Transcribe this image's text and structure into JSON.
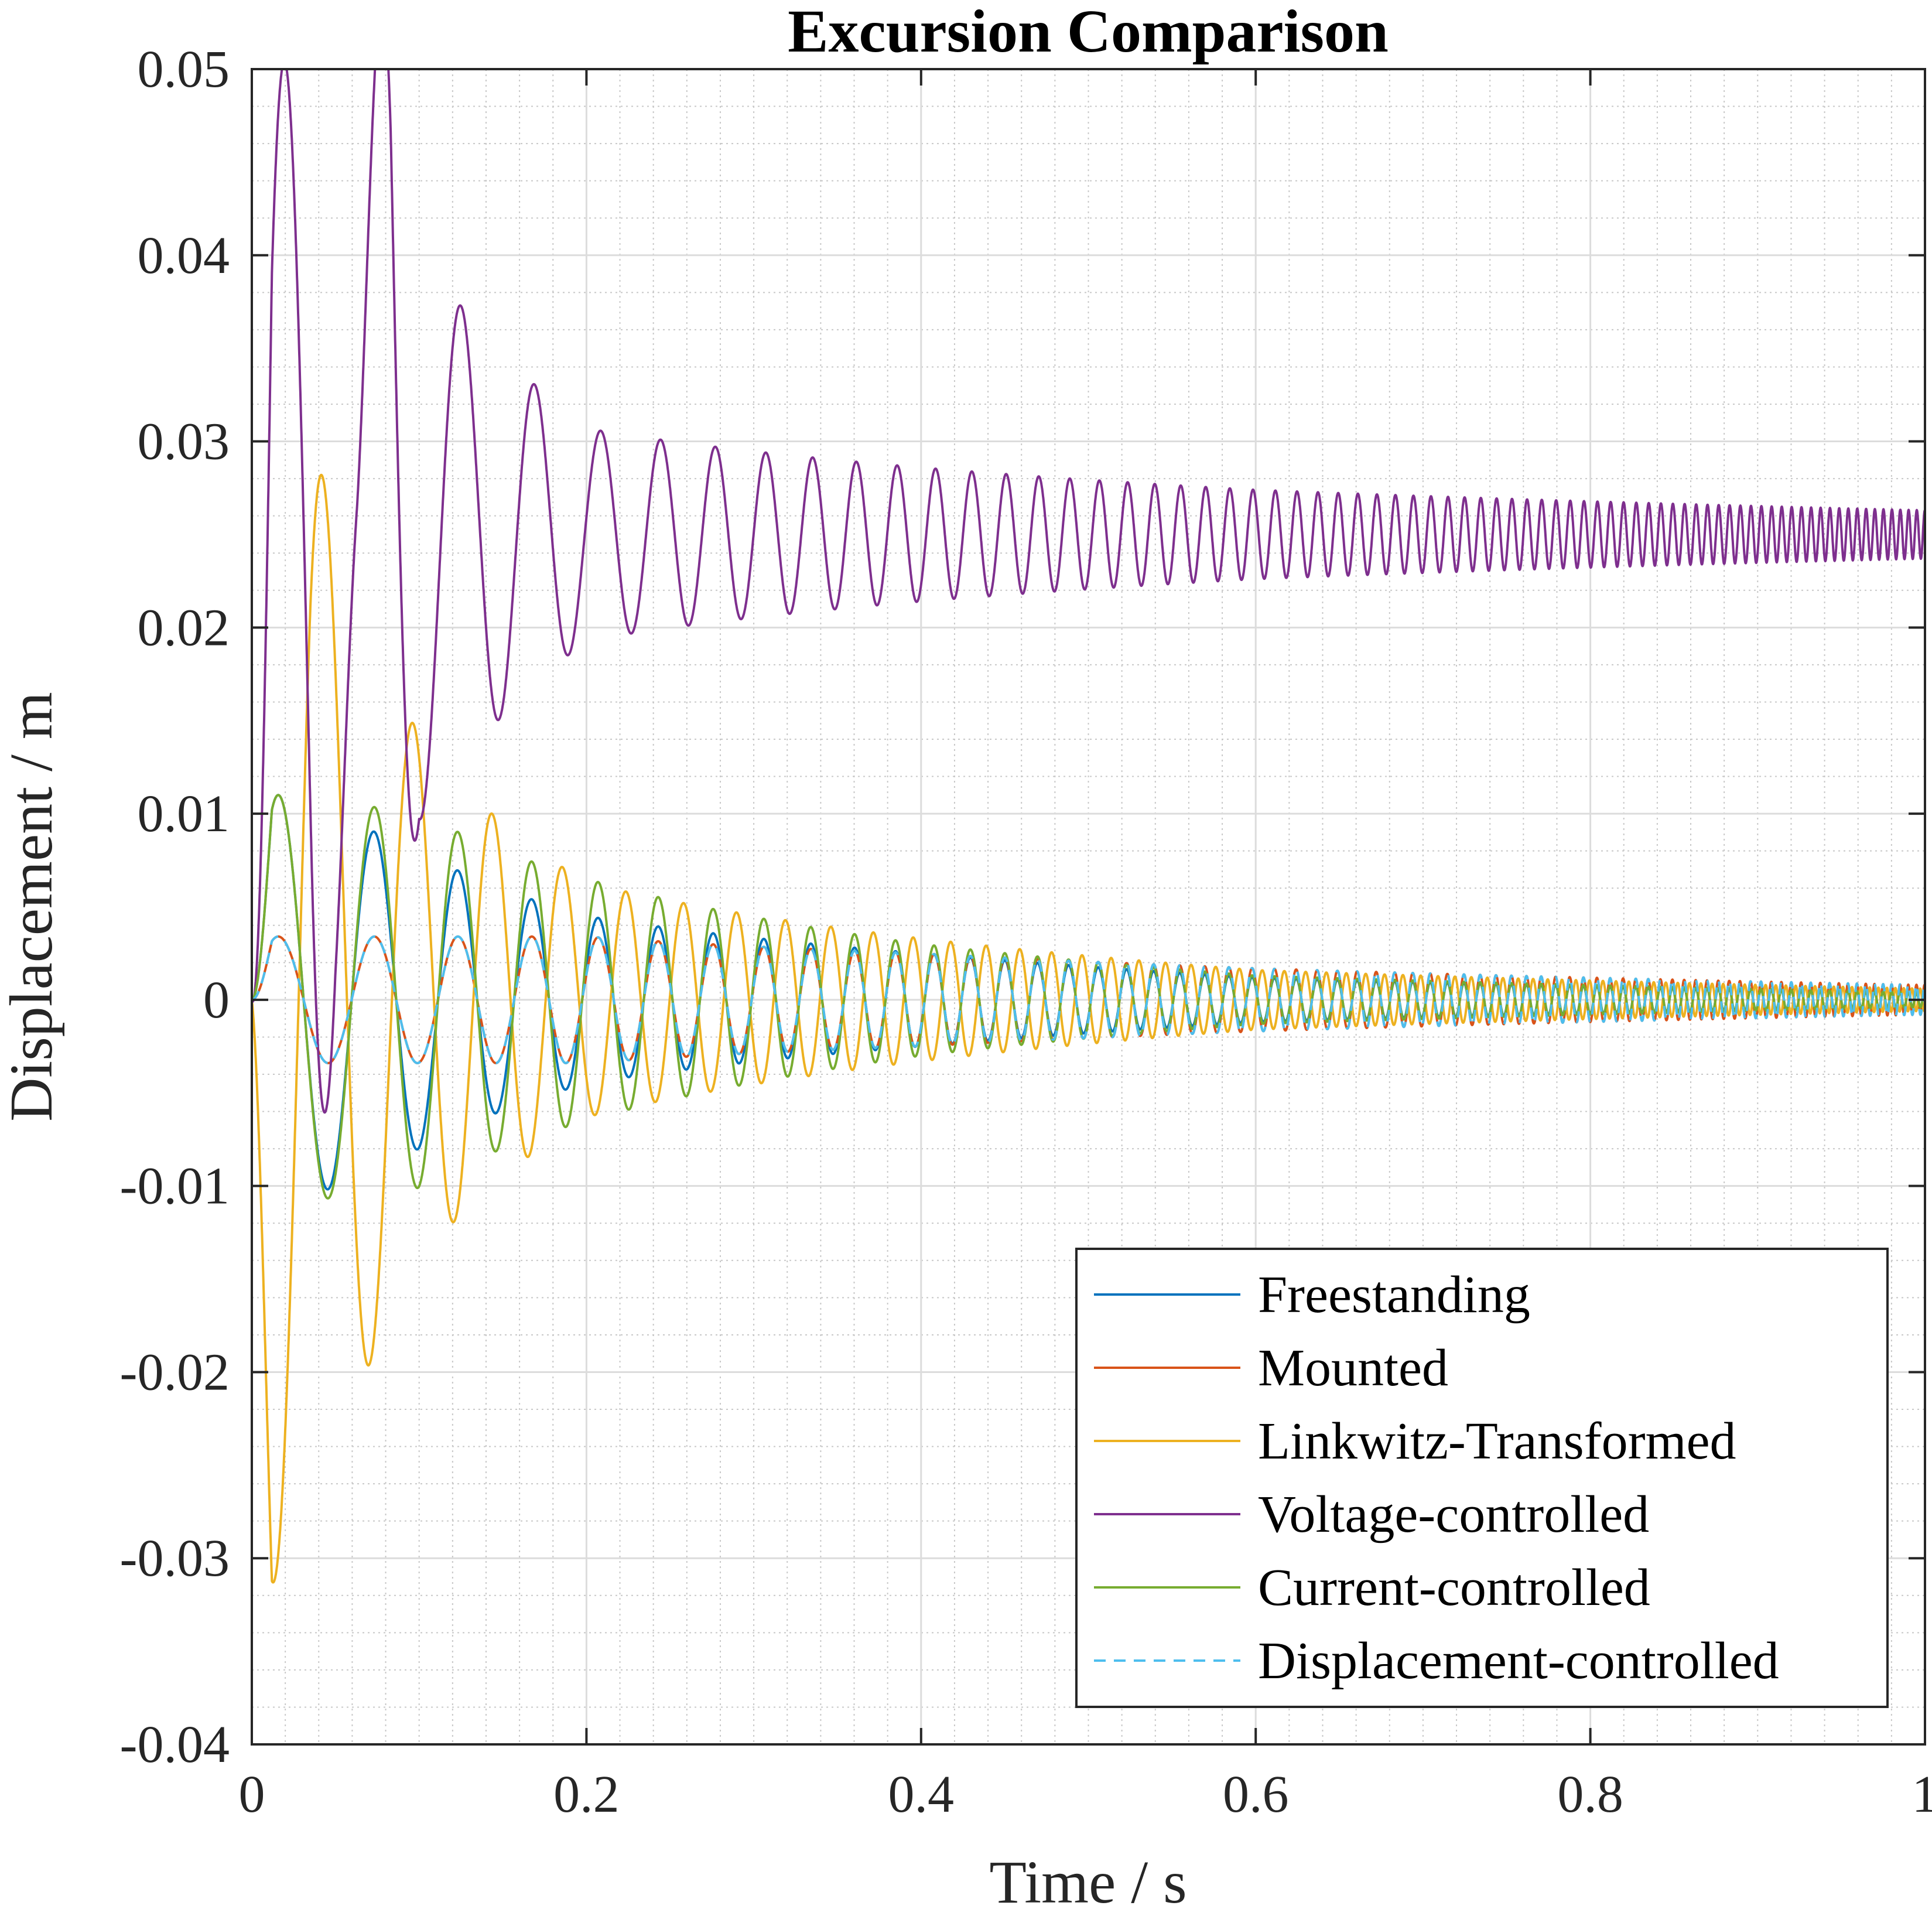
{
  "chart_data": {
    "type": "line",
    "title": "Excursion Comparison",
    "xlabel": "Time / s",
    "ylabel": "Displacement / m",
    "xlim": [
      0,
      1
    ],
    "ylim": [
      -0.04,
      0.05
    ],
    "xticks": [
      0,
      0.2,
      0.4,
      0.6,
      0.8,
      1
    ],
    "xtick_labels": [
      "0",
      "0.2",
      "0.4",
      "0.6",
      "0.8",
      "1"
    ],
    "yticks": [
      -0.04,
      -0.03,
      -0.02,
      -0.01,
      0,
      0.01,
      0.02,
      0.03,
      0.04,
      0.05
    ],
    "ytick_labels": [
      "-0.04",
      "-0.03",
      "-0.02",
      "-0.01",
      "0",
      "0.01",
      "0.02",
      "0.03",
      "0.04",
      "0.05"
    ],
    "grid": true,
    "minor_grid": true,
    "legend_position": "bottom-right",
    "signal": "logarithmic sine sweep response",
    "series": [
      {
        "name": "Freestanding",
        "color": "#0072BD",
        "dash": "solid",
        "offset": 0,
        "peaks": [
          [
            0.027,
            0.011
          ],
          [
            0.058,
            -0.0098
          ],
          [
            0.1,
            -0.008
          ],
          [
            0.2,
            -0.0045
          ],
          [
            0.4,
            -0.0025
          ],
          [
            0.6,
            -0.0012
          ],
          [
            1.0,
            -0.0004
          ]
        ]
      },
      {
        "name": "Mounted",
        "color": "#D95319",
        "dash": "solid",
        "offset": 0,
        "peaks": [
          [
            0.027,
            0.0034
          ],
          [
            0.05,
            -0.0034
          ],
          [
            0.1,
            0.0034
          ],
          [
            0.2,
            0.0034
          ],
          [
            0.4,
            0.0025
          ],
          [
            0.6,
            0.0017
          ],
          [
            1.0,
            0.0008
          ]
        ]
      },
      {
        "name": "Linkwitz-Transformed",
        "color": "#EDB120",
        "dash": "solid",
        "offset": 0,
        "peaks": [
          [
            0.035,
            -0.0313
          ],
          [
            0.083,
            -0.0168
          ],
          [
            0.12,
            -0.012
          ],
          [
            0.2,
            -0.0063
          ],
          [
            0.4,
            -0.0033
          ],
          [
            0.6,
            -0.0016
          ],
          [
            1.0,
            -0.0006
          ]
        ]
      },
      {
        "name": "Voltage-controlled",
        "color": "#7E2F8E",
        "dash": "solid",
        "offset": 0.025,
        "peaks": [
          [
            0.036,
            0.041
          ],
          [
            0.063,
            0.0123
          ],
          [
            0.083,
            0.0357
          ],
          [
            0.1,
            0.0154
          ],
          [
            0.2,
            0.0057
          ],
          [
            0.4,
            0.0036
          ],
          [
            0.6,
            0.0024
          ],
          [
            1.0,
            0.0013
          ]
        ]
      },
      {
        "name": "Current-controlled",
        "color": "#77AC30",
        "dash": "solid",
        "offset": 0,
        "peaks": [
          [
            0.028,
            0.011
          ],
          [
            0.058,
            -0.0105
          ],
          [
            0.08,
            0.0103
          ],
          [
            0.1,
            -0.0101
          ],
          [
            0.2,
            -0.0065
          ],
          [
            0.4,
            -0.003
          ],
          [
            0.6,
            -0.0013
          ],
          [
            1.0,
            -0.0004
          ]
        ]
      },
      {
        "name": "Displacement-controlled",
        "color": "#4DBEEE",
        "dash": "dashed",
        "offset": 0,
        "peaks": [
          [
            0.027,
            0.0034
          ],
          [
            0.05,
            -0.0034
          ],
          [
            0.1,
            0.0034
          ],
          [
            0.2,
            0.0034
          ],
          [
            0.4,
            0.0025
          ],
          [
            0.6,
            0.0017
          ],
          [
            1.0,
            0.0008
          ]
        ]
      }
    ]
  }
}
